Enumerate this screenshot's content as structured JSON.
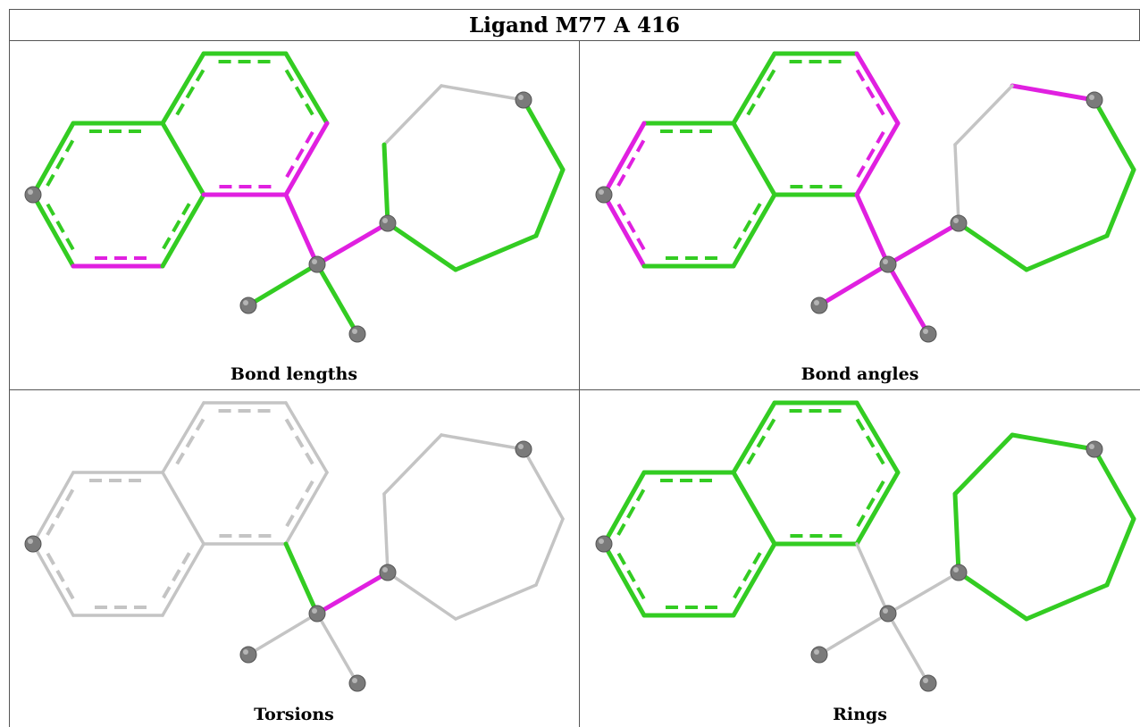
{
  "title": "Ligand M77 A 416",
  "panels": [
    {
      "caption": "Bond lengths",
      "bonds": {
        "Aa": "green",
        "Ab": "green",
        "Ac": "green",
        "Ad": "pink",
        "Ae": "green",
        "Af": "green",
        "Ba": "green",
        "Bb": "green",
        "Bc": "green",
        "Bd": "pink",
        "Be": "pink",
        "Bf": "pink",
        "s1": "pink",
        "s2": "pink",
        "m1": "green",
        "m2": "green",
        "Ca": "green",
        "Cb": "green",
        "Cc": "green",
        "Cd": "green",
        "Ce": "gray",
        "Cf": "gray",
        "Cg": "green"
      }
    },
    {
      "caption": "Bond angles",
      "bonds": {
        "Aa": "green",
        "Ab": "pink",
        "Ac": "pink",
        "Ad": "green",
        "Ae": "green",
        "Af": "green",
        "Ba": "green",
        "Bb": "green",
        "Bc": "pink",
        "Bd": "pink",
        "Be": "green",
        "Bf": "green",
        "s1": "pink",
        "s2": "pink",
        "m1": "pink",
        "m2": "pink",
        "Ca": "green",
        "Cb": "green",
        "Cc": "green",
        "Cd": "green",
        "Ce": "pink",
        "Cf": "gray",
        "Cg": "gray"
      }
    },
    {
      "caption": "Torsions",
      "bonds": {
        "Aa": "gray",
        "Ab": "gray",
        "Ac": "gray",
        "Ad": "gray",
        "Ae": "gray",
        "Af": "gray",
        "Ba": "gray",
        "Bb": "gray",
        "Bc": "gray",
        "Bd": "gray",
        "Be": "gray",
        "Bf": "gray",
        "s1": "green",
        "s2": "pink",
        "m1": "gray",
        "m2": "gray",
        "Ca": "gray",
        "Cb": "gray",
        "Cc": "gray",
        "Cd": "gray",
        "Ce": "gray",
        "Cf": "gray",
        "Cg": "gray"
      }
    },
    {
      "caption": "Rings",
      "bonds": {
        "Aa": "green",
        "Ab": "green",
        "Ac": "green",
        "Ad": "green",
        "Ae": "green",
        "Af": "green",
        "Ba": "green",
        "Bb": "green",
        "Bc": "green",
        "Bd": "green",
        "Be": "green",
        "Bf": "green",
        "s1": "gray",
        "s2": "gray",
        "m1": "gray",
        "m2": "gray",
        "Ca": "green",
        "Cb": "green",
        "Cc": "green",
        "Cd": "green",
        "Ce": "green",
        "Cf": "green",
        "Cg": "green"
      }
    }
  ],
  "colors": {
    "green": "#33cc22",
    "pink": "#e020e0",
    "gray": "#c4c4c4",
    "atom": "#7a7a7a"
  }
}
